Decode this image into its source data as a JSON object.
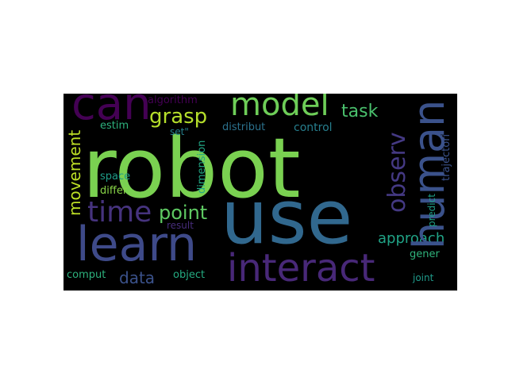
{
  "colors": {
    "background": "#000000",
    "canvas": "#ffffff"
  },
  "words": {
    "robot": {
      "text": "robot",
      "color": "#7ad151"
    },
    "use": {
      "text": "use",
      "color": "#31688e"
    },
    "learn": {
      "text": "learn",
      "color": "#3e4a89"
    },
    "can": {
      "text": "can",
      "color": "#440154"
    },
    "human": {
      "text": "human",
      "color": "#3b528b"
    },
    "interact": {
      "text": "interact",
      "color": "#482878"
    },
    "model": {
      "text": "model",
      "color": "#6ece58"
    },
    "observ": {
      "text": "observ",
      "color": "#443983"
    },
    "time": {
      "text": "time",
      "color": "#46337e"
    },
    "movement": {
      "text": "movement",
      "color": "#bddf26"
    },
    "grasp": {
      "text": "grasp",
      "color": "#b5de2b"
    },
    "point": {
      "text": "point",
      "color": "#5ec962"
    },
    "task": {
      "text": "task",
      "color": "#4ac16d"
    },
    "approach": {
      "text": "approach",
      "color": "#20a386"
    },
    "data": {
      "text": "data",
      "color": "#3b528b"
    },
    "algorithm": {
      "text": "algorithm",
      "color": "#440154"
    },
    "estim": {
      "text": "estim",
      "color": "#2db27d"
    },
    "set": {
      "text": "set\"",
      "color": "#26828e"
    },
    "distribut": {
      "text": "distribut",
      "color": "#2c728e"
    },
    "control": {
      "text": "control",
      "color": "#277f8e"
    },
    "dimension": {
      "text": "dimension",
      "color": "#22a785"
    },
    "space": {
      "text": "space",
      "color": "#1f9e89"
    },
    "differ": {
      "text": "differ",
      "color": "#89d548"
    },
    "result": {
      "text": "result",
      "color": "#472d7b"
    },
    "trajectori": {
      "text": "trajectori",
      "color": "#3b528b"
    },
    "predict": {
      "text": "predict",
      "color": "#1fa088"
    },
    "gener": {
      "text": "gener",
      "color": "#2fb47c"
    },
    "comput": {
      "text": "comput",
      "color": "#2db27d"
    },
    "object": {
      "text": "object",
      "color": "#25ac82"
    },
    "joint": {
      "text": "joint",
      "color": "#1f9a8a"
    }
  }
}
